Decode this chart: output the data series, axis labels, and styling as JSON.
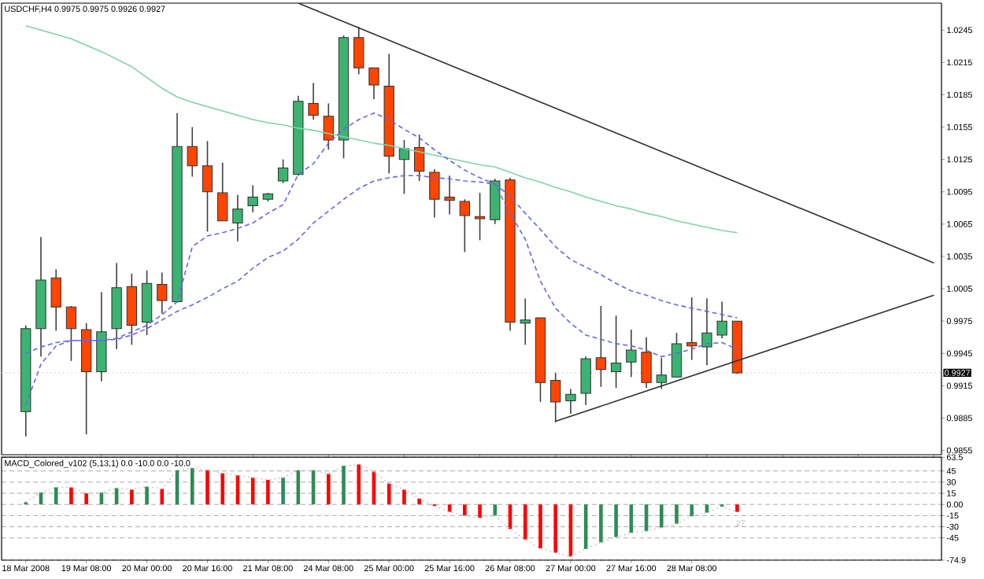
{
  "chart_data": [
    {
      "type": "candlestick",
      "title": "USDCHF,H4 0.9975 0.9975 0.9926 0.9927",
      "categories": [
        null,
        null,
        null,
        null,
        null,
        null,
        null,
        null,
        null,
        null,
        null,
        null,
        null,
        null,
        null,
        null,
        null,
        null,
        null,
        null,
        null,
        null,
        null,
        null,
        null,
        null,
        null,
        null,
        null,
        null,
        null,
        null,
        null,
        null,
        null,
        null,
        null,
        null,
        null,
        null,
        null,
        null,
        null,
        null,
        null,
        null,
        null,
        null,
        null,
        null,
        null,
        null,
        null,
        null,
        null,
        null,
        null,
        null,
        null,
        null,
        null
      ],
      "ohlc": [
        [
          0.9891,
          0.9971,
          0.9868,
          0.9968
        ],
        [
          0.9968,
          1.0053,
          0.9942,
          1.0013
        ],
        [
          1.0015,
          1.0023,
          0.9966,
          0.9988
        ],
        [
          0.9988,
          0.9989,
          0.9938,
          0.9968
        ],
        [
          0.9967,
          0.9973,
          0.987,
          0.9928
        ],
        [
          0.9928,
          1.0002,
          0.9919,
          0.9965
        ],
        [
          0.9968,
          1.0029,
          0.9949,
          1.0006
        ],
        [
          1.0007,
          1.0019,
          0.9953,
          0.9971
        ],
        [
          0.9974,
          1.0022,
          0.9962,
          1.001
        ],
        [
          1.0009,
          1.002,
          0.9982,
          0.9994
        ],
        [
          0.9993,
          1.0168,
          0.9992,
          1.0137
        ],
        [
          1.0137,
          1.0155,
          1.0109,
          1.0119
        ],
        [
          1.0119,
          1.0142,
          1.0058,
          1.0095
        ],
        [
          1.0094,
          1.0122,
          1.0068,
          1.0068
        ],
        [
          1.0066,
          1.0092,
          1.0049,
          1.0079
        ],
        [
          1.0082,
          1.0101,
          1.0076,
          1.009
        ],
        [
          1.0088,
          1.0094,
          1.0086,
          1.0093
        ],
        [
          1.0105,
          1.0125,
          1.0103,
          1.0117
        ],
        [
          1.0111,
          1.0184,
          1.011,
          1.0179
        ],
        [
          1.0177,
          1.0196,
          1.0162,
          1.0166
        ],
        [
          1.0165,
          1.0177,
          1.0134,
          1.0143
        ],
        [
          1.0143,
          1.024,
          1.0126,
          1.0238
        ],
        [
          1.0238,
          1.0248,
          1.0204,
          1.021
        ],
        [
          1.021,
          1.021,
          1.0181,
          1.0194
        ],
        [
          1.0193,
          1.0223,
          1.0112,
          1.0128
        ],
        [
          1.0125,
          1.0143,
          1.0093,
          1.0135
        ],
        [
          1.0136,
          1.0148,
          1.0105,
          1.0114
        ],
        [
          1.0113,
          1.0116,
          1.0071,
          1.0088
        ],
        [
          1.009,
          1.011,
          1.0074,
          1.0087
        ],
        [
          1.0086,
          1.0088,
          1.0039,
          1.0073
        ],
        [
          1.0072,
          1.0094,
          1.005,
          1.007
        ],
        [
          1.0069,
          1.0107,
          1.0065,
          1.0105
        ],
        [
          1.0106,
          1.0108,
          0.9966,
          0.9974
        ],
        [
          0.9973,
          0.9996,
          0.9953,
          0.9976
        ],
        [
          0.9978,
          0.9978,
          0.99,
          0.9918
        ],
        [
          0.992,
          0.9927,
          0.9881,
          0.99
        ],
        [
          0.9901,
          0.9912,
          0.9889,
          0.9907
        ],
        [
          0.9908,
          0.9942,
          0.9897,
          0.994
        ],
        [
          0.9941,
          0.9989,
          0.9914,
          0.993
        ],
        [
          0.9928,
          0.998,
          0.9913,
          0.9936
        ],
        [
          0.9937,
          0.9967,
          0.9923,
          0.9948
        ],
        [
          0.9946,
          0.996,
          0.9913,
          0.9918
        ],
        [
          0.9918,
          0.9941,
          0.9912,
          0.9925
        ],
        [
          0.9923,
          0.9964,
          0.9923,
          0.9954
        ],
        [
          0.9955,
          0.9997,
          0.9939,
          0.9952
        ],
        [
          0.9951,
          0.9996,
          0.9934,
          0.9964
        ],
        [
          0.9962,
          0.9993,
          0.9959,
          0.9975
        ],
        [
          0.9975,
          0.9975,
          0.9926,
          0.9927
        ],
        null,
        null,
        null,
        null,
        null,
        null,
        null,
        null,
        null,
        null,
        null,
        null,
        null
      ],
      "colors": [
        "#3cb371",
        "#3cb371",
        "#ff4500",
        "#ff4500",
        "#ff4500",
        "#3cb371",
        "#3cb371",
        "#ff4500",
        "#3cb371",
        "#ff4500",
        "#3cb371",
        "#ff4500",
        "#ff4500",
        "#ff4500",
        "#3cb371",
        "#3cb371",
        "#3cb371",
        "#3cb371",
        "#3cb371",
        "#ff4500",
        "#ff4500",
        "#3cb371",
        "#ff4500",
        "#ff4500",
        "#ff4500",
        "#3cb371",
        "#ff4500",
        "#ff4500",
        "#ff4500",
        "#ff4500",
        "#ff4500",
        "#3cb371",
        "#ff4500",
        "#3cb371",
        "#ff4500",
        "#ff4500",
        "#3cb371",
        "#3cb371",
        "#ff4500",
        "#3cb371",
        "#3cb371",
        "#ff4500",
        "#3cb371",
        "#3cb371",
        "#ff4500",
        "#3cb371",
        "#3cb371",
        "#ff4500",
        null,
        null,
        null,
        null,
        null,
        null,
        null,
        null,
        null,
        null,
        null,
        null,
        null
      ],
      "series": [
        {
          "type": "line",
          "color": "#7fd4a8",
          "line_style": "solid",
          "values": [
            1.0249,
            1.0245,
            1.0241,
            1.0237,
            1.0231,
            1.0225,
            1.0218,
            1.0211,
            1.0201,
            1.0191,
            1.0183,
            1.0178,
            1.0174,
            1.017,
            1.0166,
            1.0162,
            1.0159,
            1.0157,
            1.0154,
            1.0152,
            1.0149,
            1.0146,
            1.0143,
            1.014,
            1.0138,
            1.0135,
            1.0132,
            1.0129,
            1.0126,
            1.0123,
            1.012,
            1.0118,
            1.0113,
            1.0108,
            1.0104,
            1.0099,
            1.0095,
            1.009,
            1.0086,
            1.0082,
            1.0079,
            1.0075,
            1.0072,
            1.0068,
            1.0065,
            1.0062,
            1.0059,
            1.0057,
            null,
            null,
            null,
            null,
            null,
            null,
            null,
            null,
            null,
            null,
            null,
            null,
            null
          ]
        },
        {
          "type": "line",
          "color": "#6666ee",
          "line_style": "dashed",
          "values": [
            0.9897,
            0.9935,
            0.9952,
            0.9957,
            0.9957,
            0.9957,
            0.9959,
            0.9965,
            0.9971,
            0.9981,
            0.9993,
            1.0044,
            1.0054,
            1.0057,
            1.0061,
            1.0066,
            1.0075,
            1.0083,
            1.0111,
            1.0121,
            1.014,
            1.0153,
            1.0162,
            1.0168,
            1.0162,
            1.0153,
            1.0145,
            1.0134,
            1.0124,
            1.0115,
            1.0108,
            1.0102,
            1.0075,
            1.0051,
            1.0012,
            0.9987,
            0.9973,
            0.9962,
            0.9958,
            0.9954,
            0.9952,
            0.9948,
            0.9942,
            0.9945,
            0.9949,
            0.9954,
            0.9955,
            0.9949,
            null,
            null,
            null,
            null,
            null,
            null,
            null,
            null,
            null,
            null,
            null,
            null,
            null
          ]
        },
        {
          "type": "line",
          "color": "#6666ee",
          "line_style": "dashed",
          "values": [
            0.9945,
            0.9951,
            0.9955,
            0.9957,
            0.9957,
            0.9957,
            0.9958,
            0.9962,
            0.9968,
            0.9976,
            0.9984,
            0.999,
            0.9997,
            1.0005,
            1.0012,
            1.0024,
            1.0034,
            1.004,
            1.0051,
            1.0066,
            1.0077,
            1.0088,
            1.0098,
            1.0105,
            1.0108,
            1.011,
            1.011,
            1.0108,
            1.0107,
            1.0105,
            1.0104,
            1.0102,
            1.0091,
            1.0075,
            1.006,
            1.0044,
            1.0032,
            1.0025,
            1.0018,
            1.001,
            1.0003,
            0.9999,
            0.9994,
            0.999,
            0.9987,
            0.9984,
            0.9981,
            0.9978,
            null,
            null,
            null,
            null,
            null,
            null,
            null,
            null,
            null,
            null,
            null,
            null,
            null
          ]
        },
        {
          "type": "line",
          "color": "#303030",
          "line_style": "solid",
          "values": [
            null,
            null,
            null,
            null,
            null,
            null,
            null,
            null,
            null,
            null,
            null,
            null,
            null,
            null,
            null,
            null,
            null,
            null,
            1.027,
            null,
            null,
            null,
            null,
            null,
            null,
            null,
            null,
            null,
            null,
            null,
            null,
            null,
            null,
            null,
            null,
            null,
            null,
            null,
            null,
            null,
            null,
            null,
            null,
            null,
            null,
            null,
            null,
            null,
            null,
            null,
            null,
            null,
            null,
            null,
            null,
            null,
            null,
            null,
            null,
            null,
            1.0029
          ]
        },
        {
          "type": "line",
          "color": "#303030",
          "line_style": "solid",
          "values": [
            null,
            null,
            null,
            null,
            null,
            null,
            null,
            null,
            null,
            null,
            null,
            null,
            null,
            null,
            null,
            null,
            null,
            null,
            null,
            null,
            null,
            null,
            null,
            null,
            null,
            null,
            null,
            null,
            null,
            null,
            null,
            null,
            null,
            null,
            null,
            0.9882,
            null,
            null,
            null,
            null,
            null,
            null,
            null,
            null,
            null,
            null,
            null,
            null,
            null,
            null,
            null,
            null,
            null,
            null,
            null,
            null,
            null,
            null,
            null,
            null,
            0.9999
          ]
        }
      ],
      "ylim": [
        0.9851,
        1.027
      ],
      "yticks": [
        0.9855,
        0.9885,
        0.9915,
        0.9945,
        0.9975,
        1.0005,
        1.0035,
        1.0065,
        1.0095,
        1.0125,
        1.0155,
        1.0185,
        1.0215,
        1.0245
      ],
      "ref_lines": [
        {
          "axis": "y",
          "value": 0.9927,
          "label": "0.9927",
          "color": "#c8c8c8",
          "line_style": "dotted"
        }
      ],
      "tick_labels": "y"
    },
    {
      "type": "bar",
      "title": "MACD_Colored_v102 (5,13,1) 0.0 -10.0 0.0 -10.0",
      "categories": [
        "18 Mar 2008",
        null,
        null,
        null,
        "19 Mar 08:00",
        null,
        null,
        null,
        "20 Mar 00:00",
        null,
        null,
        null,
        "20 Mar 16:00",
        null,
        null,
        null,
        "21 Mar 08:00",
        null,
        null,
        null,
        "24 Mar 08:00",
        null,
        null,
        null,
        "25 Mar 00:00",
        null,
        null,
        null,
        "25 Mar 16:00",
        null,
        null,
        null,
        "26 Mar 08:00",
        null,
        null,
        null,
        "27 Mar 00:00",
        null,
        null,
        null,
        "27 Mar 16:00",
        null,
        null,
        null,
        "28 Mar 08:00",
        null,
        null,
        null,
        null,
        null,
        null,
        null,
        null,
        null,
        null,
        null,
        null,
        null,
        null,
        null,
        null
      ],
      "series": [
        {
          "type": "bar",
          "colors": [
            "#2e8b57",
            "#2e8b57",
            "#2e8b57",
            "#ff0000",
            "#ff0000",
            "#2e8b57",
            "#2e8b57",
            "#ff0000",
            "#2e8b57",
            "#ff0000",
            "#2e8b57",
            "#2e8b57",
            "#ff0000",
            "#ff0000",
            "#ff0000",
            "#ff0000",
            "#ff0000",
            "#2e8b57",
            "#2e8b57",
            "#2e8b57",
            "#ff0000",
            "#2e8b57",
            "#ff0000",
            "#ff0000",
            "#ff0000",
            "#ff0000",
            "#ff0000",
            "#ff0000",
            "#ff0000",
            "#ff0000",
            "#ff0000",
            "#2e8b57",
            "#ff0000",
            "#ff0000",
            "#ff0000",
            "#ff0000",
            "#ff0000",
            "#2e8b57",
            "#2e8b57",
            "#2e8b57",
            "#2e8b57",
            "#2e8b57",
            "#2e8b57",
            "#2e8b57",
            "#2e8b57",
            "#2e8b57",
            "#2e8b57",
            "#ff0000",
            null,
            null,
            null,
            null,
            null,
            null,
            null,
            null,
            null,
            null,
            null,
            null,
            null
          ],
          "values": [
            3,
            16,
            23,
            23,
            15,
            16,
            22,
            20,
            24,
            21,
            46,
            49,
            46,
            42,
            39,
            36,
            33,
            36,
            46,
            46,
            41,
            52,
            54,
            44,
            28,
            20,
            8,
            -2,
            -10,
            -15,
            -18,
            -15,
            -33,
            -47,
            -59,
            -65,
            -70,
            -60,
            -51,
            -44,
            -38,
            -36,
            -31,
            -26,
            -16,
            -11,
            -3,
            -10,
            null,
            null,
            null,
            null,
            null,
            null,
            null,
            null,
            null,
            null,
            null,
            null,
            null
          ]
        },
        {
          "type": "line",
          "color": "#c0c0c0",
          "line_style": "dotted",
          "values": [
            3,
            16,
            23,
            23,
            15,
            16,
            22,
            20,
            24,
            21,
            46,
            49,
            46,
            42,
            39,
            36,
            33,
            36,
            46,
            46,
            41,
            52,
            54,
            44,
            28,
            20,
            8,
            -2,
            -10,
            -15,
            -18,
            -15,
            -33,
            -47,
            -59,
            -65,
            -70,
            -60,
            -51,
            -44,
            -38,
            -36,
            -31,
            -26,
            -16,
            -11,
            -3,
            -10,
            null,
            null,
            null,
            null,
            null,
            null,
            null,
            null,
            null,
            null,
            null,
            null,
            null
          ]
        }
      ],
      "ylim": [
        -74.9,
        63.5
      ],
      "yticks": [
        -74.9,
        -45,
        -30,
        -15,
        {
          "value": 0,
          "label": "0.00"
        },
        15,
        30,
        45,
        63.5
      ],
      "grid": "y",
      "annotations": [
        "27"
      ]
    }
  ]
}
